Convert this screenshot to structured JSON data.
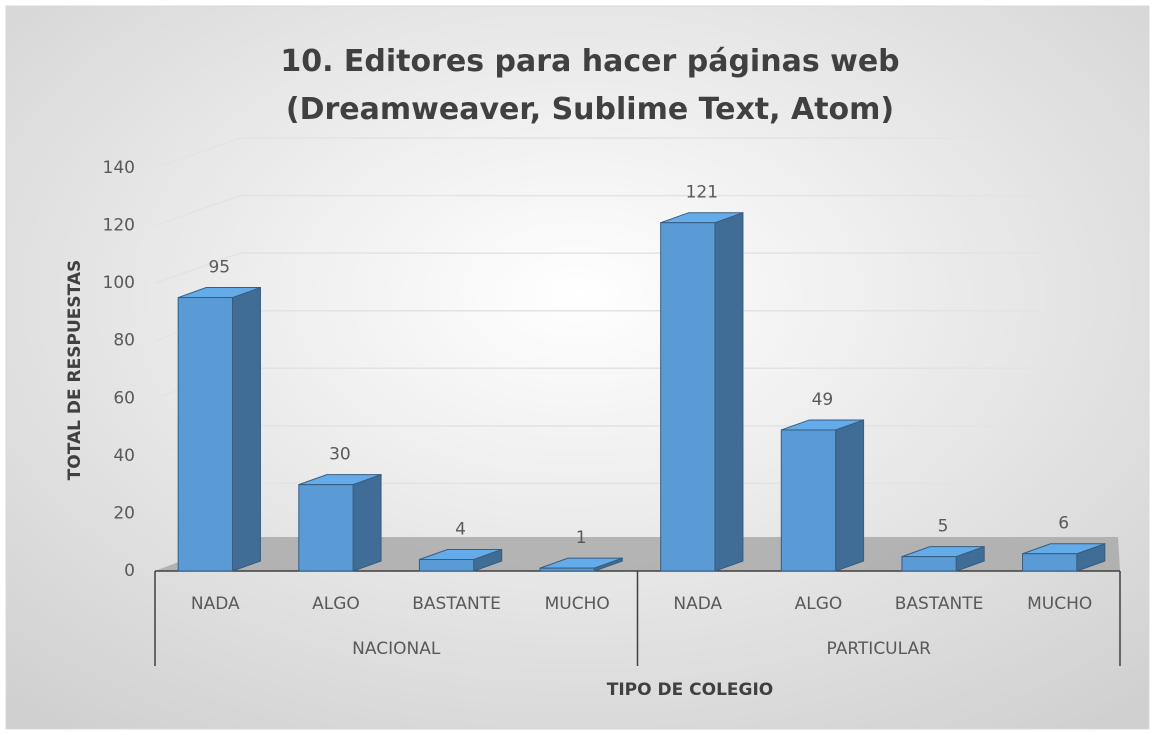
{
  "chart_data": {
    "type": "bar3d",
    "title": "10. Editores para hacer páginas web (Dreamweaver, Sublime Text, Atom)",
    "xlabel": "TIPO DE COLEGIO",
    "ylabel": "TOTAL DE RESPUESTAS",
    "groups": [
      {
        "name": "NACIONAL",
        "categories": [
          "NADA",
          "ALGO",
          "BASTANTE",
          "MUCHO"
        ],
        "values": [
          95,
          30,
          4,
          1
        ]
      },
      {
        "name": "PARTICULAR",
        "categories": [
          "NADA",
          "ALGO",
          "BASTANTE",
          "MUCHO"
        ],
        "values": [
          121,
          49,
          5,
          6
        ]
      }
    ],
    "color": "#5b9bd5",
    "ylim": [
      0,
      140
    ],
    "yticks": [
      0,
      20,
      40,
      60,
      80,
      100,
      120,
      140
    ],
    "grid": true
  }
}
